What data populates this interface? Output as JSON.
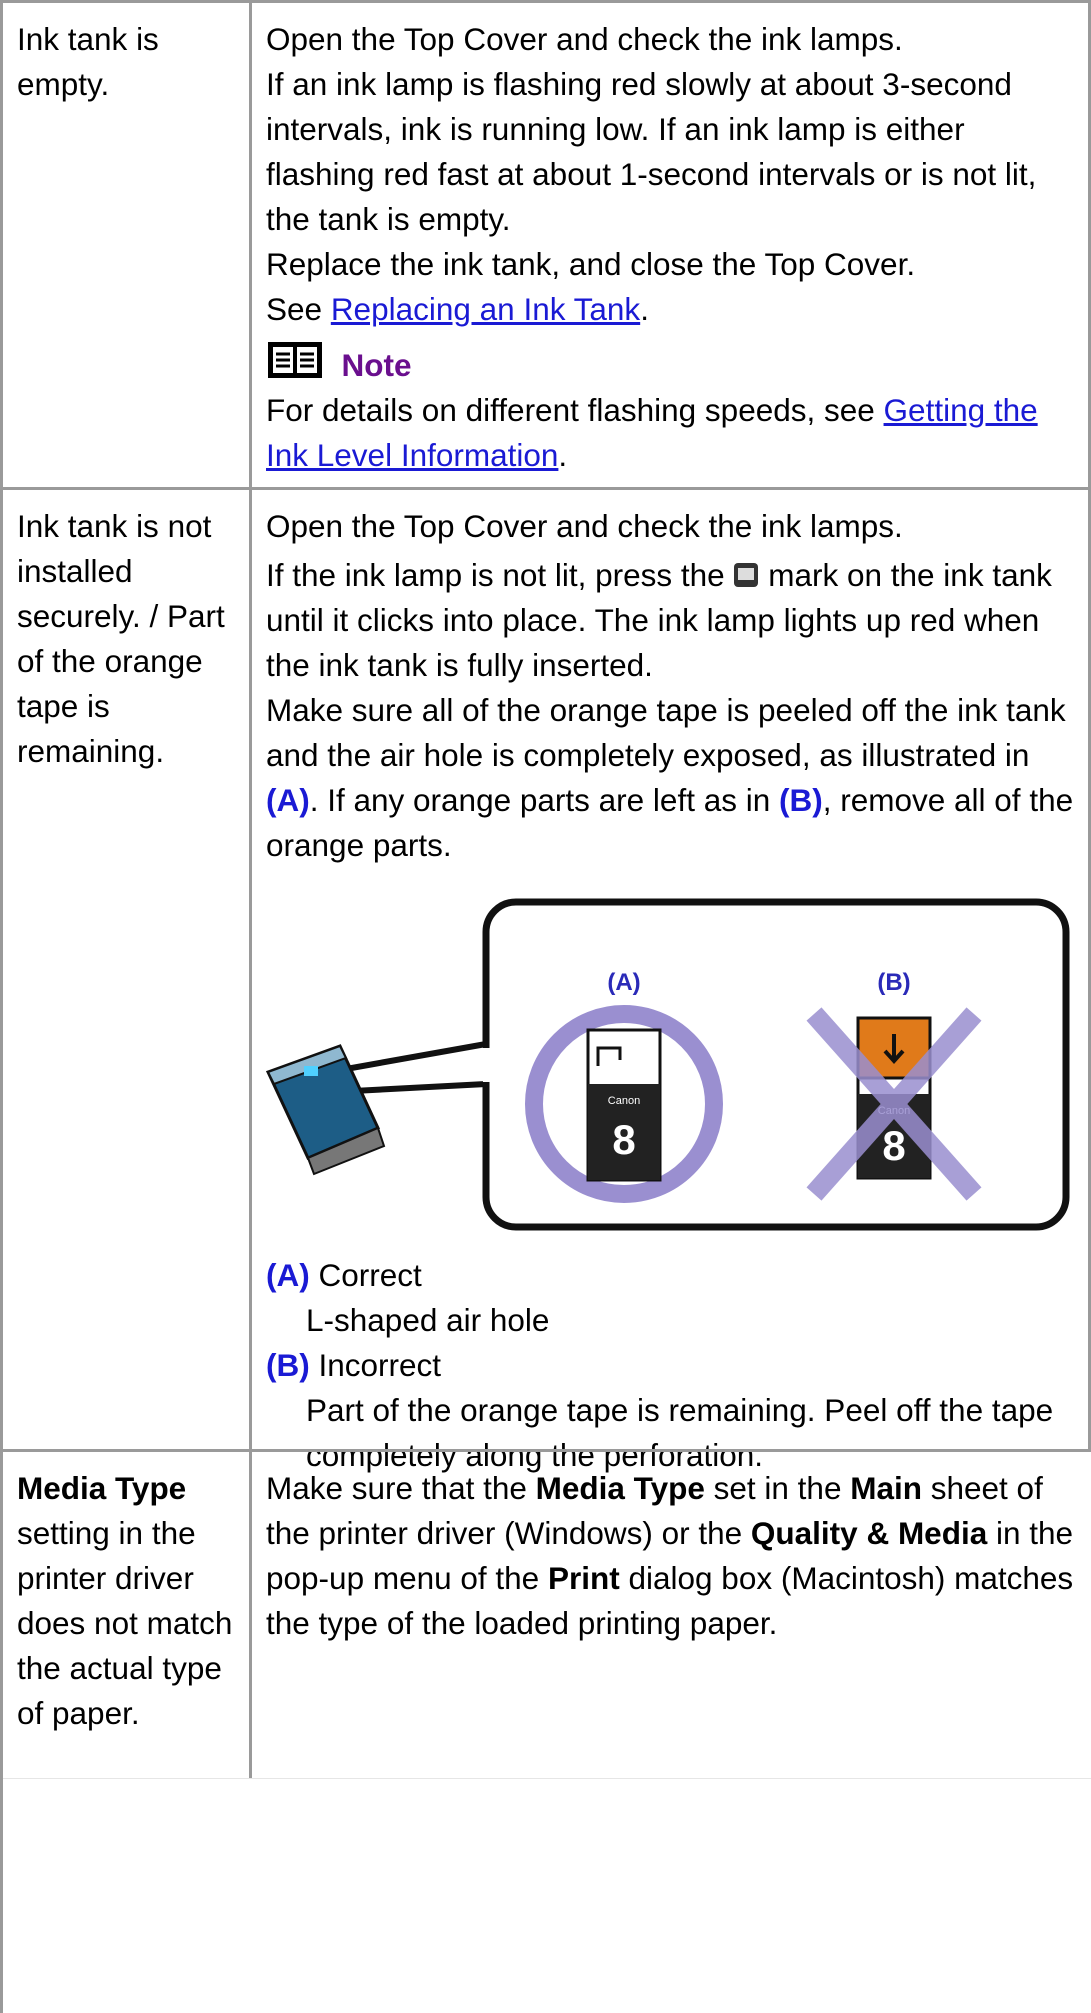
{
  "table": {
    "rows": [
      {
        "cause": "Ink tank is empty.",
        "solution": {
          "p0": "Open the Top Cover and check the ink lamps.",
          "p1": "If an ink lamp is flashing red slowly at about 3-second intervals, ink is running low. If an ink lamp is either flashing red fast at about 1-second intervals or is not lit, the tank is empty.",
          "p2": "Replace the ink tank, and close the Top Cover.",
          "see_pre": "See ",
          "see_link": "Replacing an Ink Tank",
          "see_post": ".",
          "note_title": "Note",
          "note_pre": "For details on different flashing speeds, see ",
          "note_link": "Getting the Ink Level Information",
          "note_post": "."
        }
      },
      {
        "cause": "Ink tank is not installed securely. / Part of the orange tape is remaining.",
        "solution": {
          "p0": "Open the Top Cover and check the ink lamps.",
          "p1_pre": "If the ink lamp is not lit, press the ",
          "p1_post": " mark on the ink tank until it clicks into place. The ink lamp lights up red when the ink tank is fully inserted.",
          "p2_a": "Make sure all of the orange tape is peeled off the ink tank and the air hole is completely exposed, as illustrated in ",
          "p2_b": "(A)",
          "p2_c": ". If any orange parts are left as in ",
          "p2_d": "(B)",
          "p2_e": ", remove all of the orange parts.",
          "illustration": {
            "label_a": "(A)",
            "label_b": "(B)",
            "brand": "Canon",
            "tank_number": "8"
          },
          "a_label": "(A)",
          "a_title": " Correct",
          "a_text": "L-shaped air hole",
          "b_label": "(B)",
          "b_title": " Incorrect",
          "b_text": "Part of the orange tape is remaining. Peel off the tape completely along the perforation."
        }
      },
      {
        "cause_bold": "Media Type",
        "cause_rest": " setting in the printer driver does not match the actual type of paper.",
        "solution": {
          "s0": "Make sure that the ",
          "s1": "Media Type",
          "s2": " set in the ",
          "s3": "Main",
          "s4": " sheet of the printer driver (Windows) or the ",
          "s5": "Quality & Media",
          "s6": " in the pop-up menu of the ",
          "s7": "Print",
          "s8": " dialog box (Macintosh) matches the type of the loaded printing paper."
        }
      }
    ]
  }
}
